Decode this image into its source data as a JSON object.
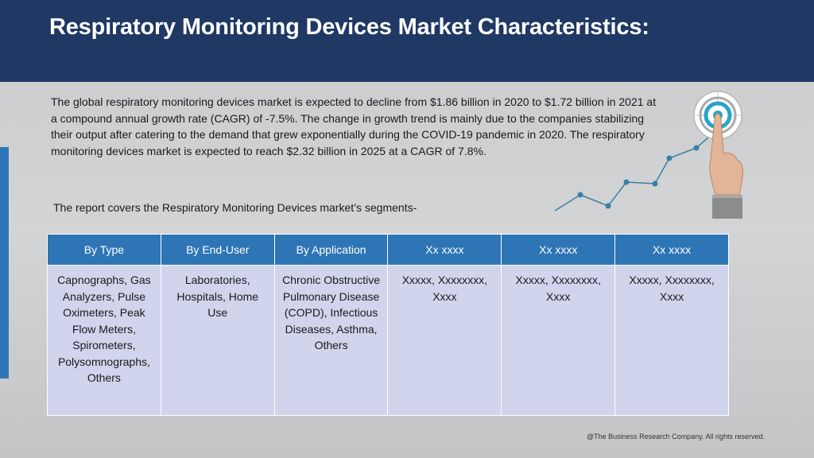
{
  "title": "Respiratory Monitoring Devices Market Characteristics:",
  "intro": "The global respiratory monitoring devices market is expected to decline from $1.86 billion in 2020 to $1.72 billion in 2021 at a compound annual growth rate (CAGR) of -7.5%. The change in growth trend is mainly due to the companies stabilizing their output after catering to the demand that grew exponentially during the COVID-19 pandemic in 2020. The respiratory monitoring devices market is expected to reach $2.32 billion in 2025 at a CAGR of 7.8%.",
  "segments_intro": "The report covers the Respiratory Monitoring Devices market’s segments-",
  "table": {
    "headers": [
      "By Type",
      "By End-User",
      "By Application",
      "Xx xxxx",
      "Xx xxxx",
      "Xx xxxx"
    ],
    "cells": [
      "Capnographs, Gas Analyzers, Pulse Oximeters, Peak Flow Meters, Spirometers, Polysomnographs, Others",
      "Laboratories, Hospitals, Home Use",
      "Chronic Obstructive Pulmonary Disease (COPD), Infectious Diseases, Asthma, Others",
      "Xxxxx, Xxxxxxxx, Xxxx",
      "Xxxxx, Xxxxxxxx, Xxxx",
      "Xxxxx, Xxxxxxxx, Xxxx"
    ]
  },
  "footer": "@The Business Research Company. All rights reserved.",
  "colors": {
    "header_bg": "#1f3864",
    "accent": "#2e75b6",
    "cell_bg": "#d0d4ec",
    "trend_line": "#3a7fa6"
  },
  "icons": [
    "target-icon",
    "pointing-hand-icon",
    "trend-line-graphic"
  ]
}
